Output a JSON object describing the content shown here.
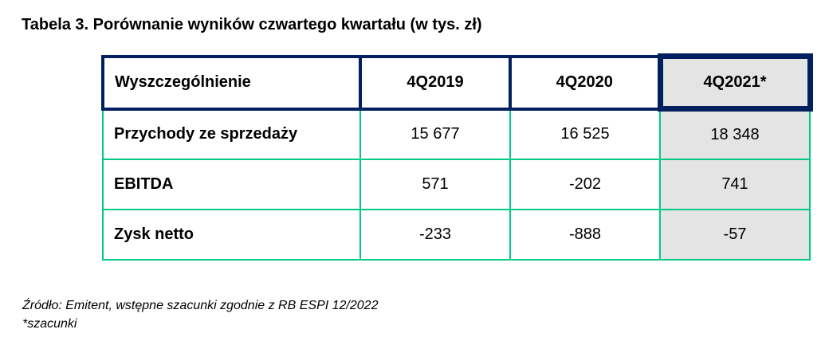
{
  "title": "Tabela 3. Porównanie wyników czwartego kwartału (w tys. zł)",
  "table": {
    "columns": [
      {
        "label": "Wyszczególnienie",
        "highlighted": false
      },
      {
        "label": "4Q2019",
        "highlighted": false
      },
      {
        "label": "4Q2020",
        "highlighted": false
      },
      {
        "label": "4Q2021*",
        "highlighted": true
      }
    ],
    "rows": [
      {
        "label": "Przychody ze sprzedaży",
        "values": [
          "15 677",
          "16 525",
          "18 348"
        ]
      },
      {
        "label": "EBITDA",
        "values": [
          "571",
          "-202",
          "741"
        ]
      },
      {
        "label": "Zysk netto",
        "values": [
          "-233",
          "-888",
          "-57"
        ]
      }
    ]
  },
  "footer": {
    "source": "Źródło: Emitent, wstępne szacunki zgodnie z RB ESPI 12/2022",
    "note": "*szacunki"
  },
  "colors": {
    "header_border": "#02205F",
    "data_border": "#00CA88",
    "highlight_background": "#E4E4E4",
    "text": "#000000",
    "page_background": "#FFFFFF"
  }
}
